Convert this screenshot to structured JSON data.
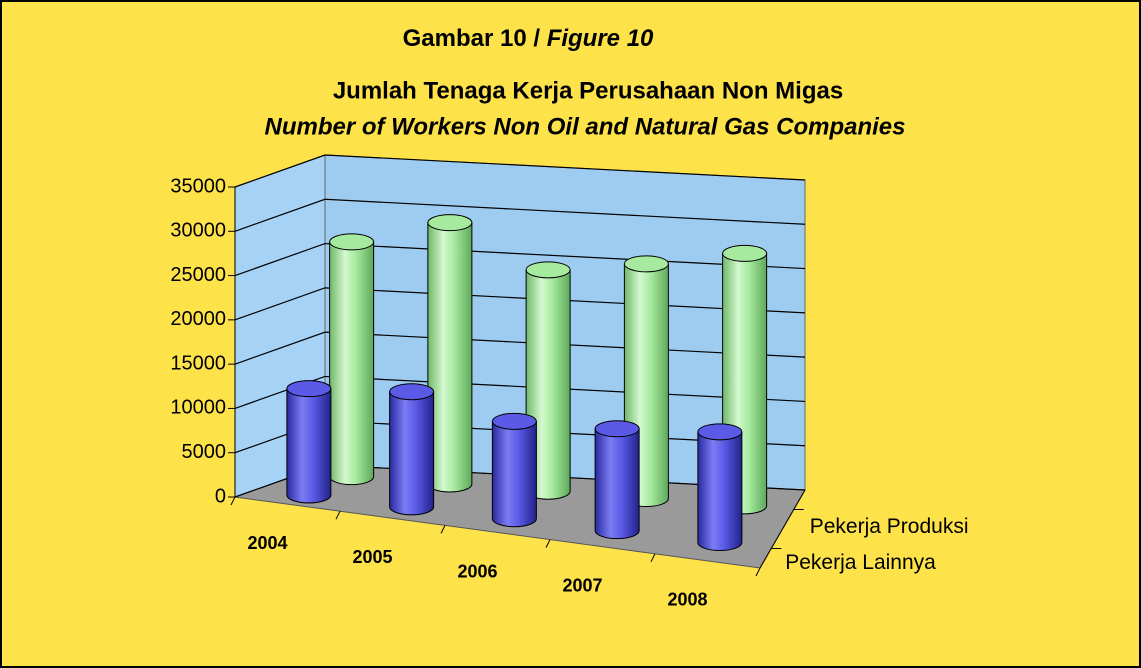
{
  "chart_data": {
    "type": "bar3d",
    "title": "Gambar 10 /",
    "title_italic": "Figure 10",
    "subtitle": "Jumlah Tenaga Kerja Perusahaan Non Migas",
    "subtitle_italic": "Number of Workers Non Oil and Natural Gas Companies",
    "categories": [
      "2004",
      "2005",
      "2006",
      "2007",
      "2008"
    ],
    "series": [
      {
        "name": "Pekerja Lainnya",
        "color": "#5a5ae6",
        "values": [
          12000,
          13000,
          11000,
          11500,
          12500
        ]
      },
      {
        "name": "Pekerja Produksi",
        "color": "#a6eaa0",
        "values": [
          26500,
          29500,
          25000,
          26500,
          28500
        ]
      }
    ],
    "ylim": [
      0,
      35000
    ],
    "yticks": [
      0,
      5000,
      10000,
      15000,
      20000,
      25000,
      30000,
      35000
    ],
    "grid": true
  }
}
